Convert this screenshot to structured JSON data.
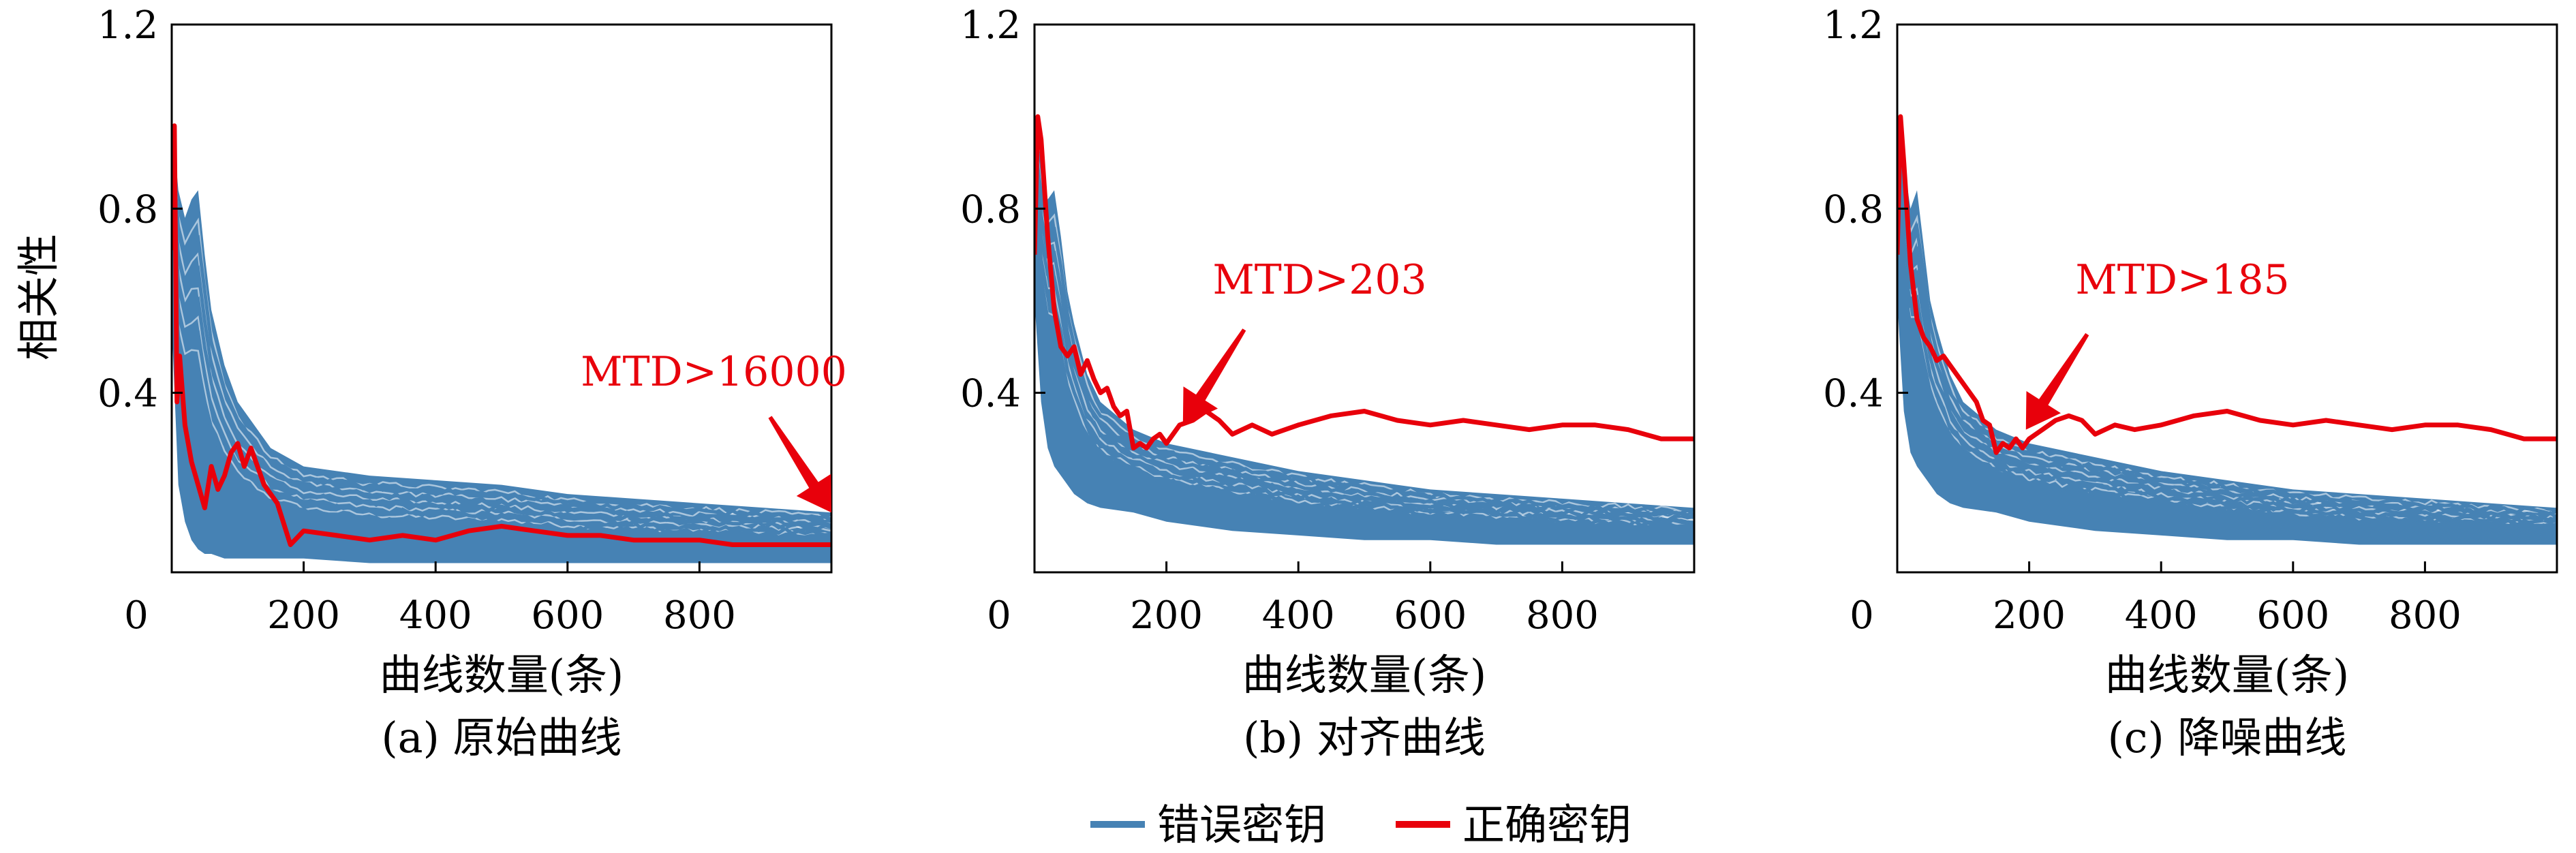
{
  "colors": {
    "wrong_key": "#4682b4",
    "correct_key": "#e8000b",
    "annotation": "#e8000b",
    "axis": "#000000"
  },
  "shared": {
    "ylabel": "相关性",
    "xlabel": "曲线数量(条)"
  },
  "legend": {
    "placement": "bottom-center",
    "items": [
      {
        "label": "错误密钥",
        "color": "#4682b4"
      },
      {
        "label": "正确密钥",
        "color": "#e8000b"
      }
    ]
  },
  "chart_data": [
    {
      "type": "line",
      "caption": "(a) 原始曲线",
      "xlabel": "曲线数量(条)",
      "ylabel": "相关性",
      "xlim": [
        0,
        1000
      ],
      "ylim": [
        0.01,
        1.2
      ],
      "xticks": [
        0,
        200,
        400,
        600,
        800
      ],
      "yticks": [
        0.4,
        0.8,
        1.2
      ],
      "annotation": {
        "text": "MTD>16000",
        "x": 1000,
        "y": 0.14
      },
      "series": [
        {
          "name": "正确密钥",
          "role": "correct",
          "x": [
            0,
            4,
            8,
            12,
            20,
            30,
            40,
            50,
            60,
            70,
            80,
            90,
            100,
            110,
            120,
            140,
            160,
            180,
            200,
            250,
            300,
            350,
            400,
            450,
            500,
            550,
            600,
            650,
            700,
            750,
            800,
            850,
            900,
            950,
            1000
          ],
          "values": [
            0.71,
            0.98,
            0.38,
            0.48,
            0.33,
            0.25,
            0.2,
            0.15,
            0.24,
            0.19,
            0.22,
            0.27,
            0.29,
            0.24,
            0.28,
            0.2,
            0.16,
            0.07,
            0.1,
            0.09,
            0.08,
            0.09,
            0.08,
            0.1,
            0.11,
            0.1,
            0.09,
            0.09,
            0.08,
            0.08,
            0.08,
            0.07,
            0.07,
            0.07,
            0.07
          ]
        }
      ],
      "wrong_key_band": {
        "x": [
          0,
          10,
          20,
          30,
          40,
          50,
          60,
          80,
          100,
          150,
          200,
          300,
          400,
          500,
          600,
          700,
          800,
          900,
          1000
        ],
        "upper": [
          1.0,
          0.84,
          0.78,
          0.82,
          0.84,
          0.7,
          0.58,
          0.46,
          0.38,
          0.28,
          0.24,
          0.22,
          0.21,
          0.2,
          0.18,
          0.17,
          0.16,
          0.15,
          0.14
        ],
        "lower": [
          0.55,
          0.2,
          0.12,
          0.08,
          0.06,
          0.05,
          0.05,
          0.04,
          0.04,
          0.04,
          0.04,
          0.03,
          0.03,
          0.03,
          0.03,
          0.03,
          0.03,
          0.03,
          0.03
        ]
      }
    },
    {
      "type": "line",
      "caption": "(b) 对齐曲线",
      "xlabel": "曲线数量(条)",
      "ylabel": "相关性",
      "xlim": [
        0,
        1000
      ],
      "ylim": [
        0.01,
        1.2
      ],
      "xticks": [
        0,
        200,
        400,
        600,
        800
      ],
      "yticks": [
        0.4,
        0.8,
        1.2
      ],
      "annotation": {
        "text": "MTD>203",
        "x": 225,
        "y": 0.33
      },
      "series": [
        {
          "name": "正确密钥",
          "role": "correct",
          "x": [
            0,
            5,
            10,
            20,
            30,
            40,
            50,
            60,
            70,
            80,
            90,
            100,
            110,
            120,
            130,
            140,
            150,
            160,
            170,
            180,
            190,
            200,
            220,
            240,
            260,
            280,
            300,
            330,
            360,
            400,
            450,
            500,
            550,
            600,
            650,
            700,
            750,
            800,
            850,
            900,
            950,
            1000
          ],
          "values": [
            0.7,
            1.0,
            0.95,
            0.74,
            0.58,
            0.5,
            0.48,
            0.5,
            0.44,
            0.47,
            0.43,
            0.4,
            0.41,
            0.37,
            0.35,
            0.36,
            0.28,
            0.29,
            0.28,
            0.3,
            0.31,
            0.29,
            0.33,
            0.34,
            0.36,
            0.34,
            0.31,
            0.33,
            0.31,
            0.33,
            0.35,
            0.36,
            0.34,
            0.33,
            0.34,
            0.33,
            0.32,
            0.33,
            0.33,
            0.32,
            0.3,
            0.3
          ]
        }
      ],
      "wrong_key_band": {
        "x": [
          0,
          10,
          20,
          30,
          40,
          50,
          60,
          80,
          100,
          150,
          200,
          300,
          400,
          500,
          600,
          700,
          800,
          900,
          1000
        ],
        "upper": [
          1.0,
          0.9,
          0.82,
          0.84,
          0.74,
          0.62,
          0.55,
          0.44,
          0.38,
          0.32,
          0.29,
          0.26,
          0.23,
          0.21,
          0.19,
          0.18,
          0.17,
          0.16,
          0.15
        ],
        "lower": [
          0.6,
          0.38,
          0.28,
          0.24,
          0.22,
          0.2,
          0.18,
          0.16,
          0.15,
          0.14,
          0.12,
          0.1,
          0.09,
          0.08,
          0.08,
          0.07,
          0.07,
          0.07,
          0.07
        ]
      }
    },
    {
      "type": "line",
      "caption": "(c) 降噪曲线",
      "xlabel": "曲线数量(条)",
      "ylabel": "相关性",
      "xlim": [
        0,
        1000
      ],
      "ylim": [
        0.01,
        1.2
      ],
      "xticks": [
        0,
        200,
        400,
        600,
        800
      ],
      "yticks": [
        0.4,
        0.8,
        1.2
      ],
      "annotation": {
        "text": "MTD>185",
        "x": 195,
        "y": 0.32
      },
      "series": [
        {
          "name": "正确密钥",
          "role": "correct",
          "x": [
            0,
            5,
            10,
            20,
            30,
            40,
            50,
            60,
            70,
            80,
            90,
            100,
            110,
            120,
            130,
            140,
            150,
            160,
            170,
            180,
            190,
            200,
            220,
            240,
            260,
            280,
            300,
            330,
            360,
            400,
            450,
            500,
            550,
            600,
            650,
            700,
            750,
            800,
            850,
            900,
            950,
            1000
          ],
          "values": [
            0.7,
            1.0,
            0.9,
            0.68,
            0.56,
            0.52,
            0.5,
            0.47,
            0.48,
            0.46,
            0.44,
            0.42,
            0.4,
            0.38,
            0.34,
            0.33,
            0.27,
            0.29,
            0.28,
            0.3,
            0.28,
            0.3,
            0.32,
            0.34,
            0.35,
            0.34,
            0.31,
            0.33,
            0.32,
            0.33,
            0.35,
            0.36,
            0.34,
            0.33,
            0.34,
            0.33,
            0.32,
            0.33,
            0.33,
            0.32,
            0.3,
            0.3
          ]
        }
      ],
      "wrong_key_band": {
        "x": [
          0,
          10,
          20,
          30,
          40,
          50,
          60,
          80,
          100,
          150,
          200,
          300,
          400,
          500,
          600,
          700,
          800,
          900,
          1000
        ],
        "upper": [
          1.0,
          0.9,
          0.8,
          0.84,
          0.72,
          0.6,
          0.54,
          0.44,
          0.38,
          0.32,
          0.29,
          0.26,
          0.23,
          0.21,
          0.19,
          0.18,
          0.17,
          0.16,
          0.15
        ],
        "lower": [
          0.6,
          0.36,
          0.27,
          0.24,
          0.22,
          0.2,
          0.18,
          0.16,
          0.15,
          0.14,
          0.12,
          0.1,
          0.09,
          0.08,
          0.08,
          0.07,
          0.07,
          0.07,
          0.07
        ]
      }
    }
  ]
}
